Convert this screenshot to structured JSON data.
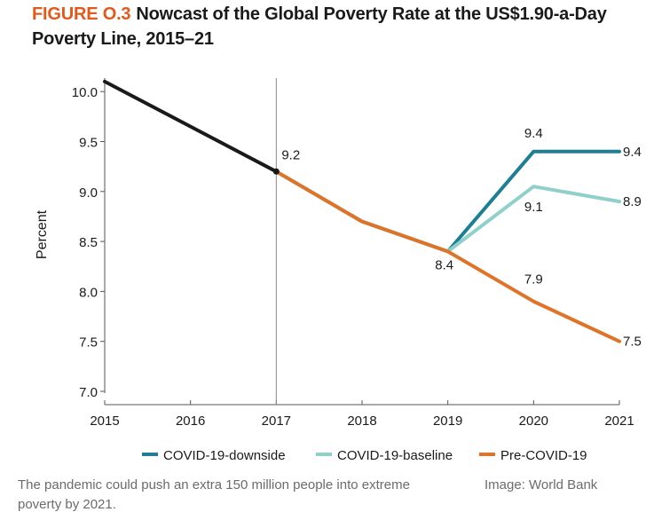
{
  "figure": {
    "label": "FIGURE O.3",
    "title": "Nowcast of the Global Poverty Rate at the US$1.90-a-Day Poverty Line, 2015–21"
  },
  "chart_data": {
    "type": "line",
    "title": "Nowcast of the Global Poverty Rate at the US$1.90-a-Day Poverty Line, 2015–21",
    "xlabel": "",
    "ylabel": "Percent",
    "categories": [
      "2015",
      "2016",
      "2017",
      "2018",
      "2019",
      "2020",
      "2021"
    ],
    "ylim": [
      7.0,
      10.1
    ],
    "yticks": [
      7.0,
      7.5,
      8.0,
      8.5,
      9.0,
      9.5,
      10.0
    ],
    "ytick_labels": [
      "7.0",
      "7.5",
      "8.0",
      "8.5",
      "9.0",
      "9.5",
      "10.0"
    ],
    "reference_line_x": "2017",
    "legend_position": "bottom",
    "series": [
      {
        "name": "Historical",
        "show_in_legend": false,
        "color": "#1a1a1a",
        "values": [
          10.1,
          9.65,
          9.2,
          null,
          null,
          null,
          null
        ]
      },
      {
        "name": "COVID-19-downside",
        "show_in_legend": true,
        "color": "#1e7f94",
        "values": [
          null,
          null,
          9.2,
          8.7,
          8.4,
          9.4,
          9.4
        ]
      },
      {
        "name": "COVID-19-baseline",
        "show_in_legend": true,
        "color": "#8fd0cb",
        "values": [
          null,
          null,
          9.2,
          8.7,
          8.4,
          9.05,
          8.9
        ]
      },
      {
        "name": "Pre-COVID-19",
        "show_in_legend": true,
        "color": "#df7328",
        "values": [
          null,
          null,
          9.2,
          8.7,
          8.4,
          7.9,
          7.5
        ]
      }
    ],
    "data_labels": [
      {
        "text": "9.2",
        "series": "Historical",
        "category": "2017",
        "value": 9.2
      },
      {
        "text": "9.4",
        "series": "COVID-19-downside",
        "category": "2020",
        "value": 9.4
      },
      {
        "text": "9.4",
        "series": "COVID-19-downside",
        "category": "2021",
        "value": 9.4
      },
      {
        "text": "9.1",
        "series": "COVID-19-baseline",
        "category": "2020",
        "value": 9.05
      },
      {
        "text": "8.9",
        "series": "COVID-19-baseline",
        "category": "2021",
        "value": 8.9
      },
      {
        "text": "8.4",
        "series": "Pre-COVID-19",
        "category": "2019",
        "value": 8.4
      },
      {
        "text": "7.9",
        "series": "Pre-COVID-19",
        "category": "2020",
        "value": 7.9
      },
      {
        "text": "7.5",
        "series": "Pre-COVID-19",
        "category": "2021",
        "value": 7.5
      }
    ]
  },
  "caption": "The pandemic could push an extra 150 million people into extreme poverty by 2021.",
  "credit": "Image: World Bank"
}
